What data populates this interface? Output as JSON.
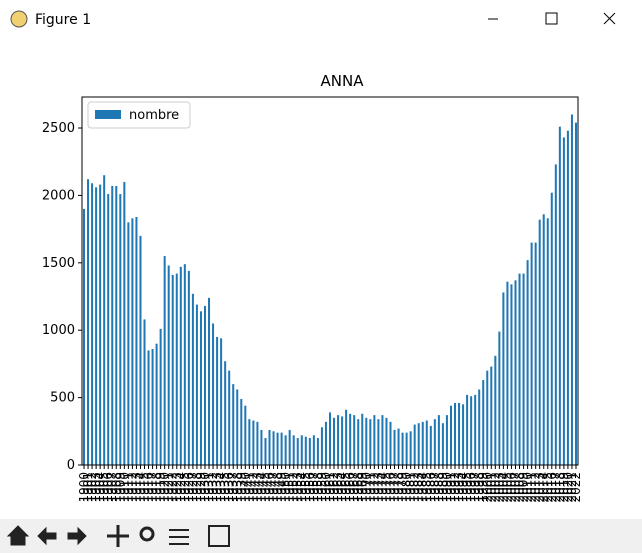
{
  "window": {
    "title": "Figure 1"
  },
  "chart_data": {
    "type": "bar",
    "title": "ANNA",
    "categories": [
      "1900",
      "1901",
      "1902",
      "1903",
      "1904",
      "1905",
      "1906",
      "1907",
      "1908",
      "1909",
      "1910",
      "1911",
      "1912",
      "1913",
      "1914",
      "1915",
      "1916",
      "1917",
      "1918",
      "1919",
      "1920",
      "1921",
      "1922",
      "1923",
      "1924",
      "1925",
      "1926",
      "1927",
      "1928",
      "1929",
      "1930",
      "1931",
      "1932",
      "1933",
      "1934",
      "1935",
      "1936",
      "1937",
      "1938",
      "1939",
      "1940",
      "1941",
      "1942",
      "1943",
      "1944",
      "1945",
      "1946",
      "1947",
      "1948",
      "1949",
      "1950",
      "1951",
      "1952",
      "1953",
      "1954",
      "1955",
      "1956",
      "1957",
      "1958",
      "1959",
      "1960",
      "1961",
      "1962",
      "1963",
      "1964",
      "1965",
      "1966",
      "1967",
      "1968",
      "1969",
      "1970",
      "1971",
      "1972",
      "1973",
      "1974",
      "1975",
      "1976",
      "1977",
      "1978",
      "1979",
      "1980",
      "1981",
      "1982",
      "1983",
      "1984",
      "1985",
      "1986",
      "1987",
      "1988",
      "1989",
      "1990",
      "1991",
      "1992",
      "1993",
      "1994",
      "1995",
      "1996",
      "1997",
      "1998",
      "1999",
      "2000",
      "2001",
      "2002",
      "2003",
      "2004",
      "2005",
      "2006",
      "2007",
      "2008",
      "2009",
      "2010",
      "2011",
      "2012",
      "2013",
      "2014",
      "2015",
      "2016",
      "2017",
      "2018",
      "2019",
      "2020",
      "2021",
      "2022"
    ],
    "series": [
      {
        "name": "nombre",
        "color": "#1f77b4",
        "values": [
          1900,
          2120,
          2090,
          2060,
          2080,
          2150,
          2010,
          2070,
          2070,
          2010,
          2100,
          1800,
          1830,
          1840,
          1700,
          1080,
          850,
          860,
          900,
          1010,
          1550,
          1480,
          1410,
          1420,
          1470,
          1490,
          1440,
          1270,
          1190,
          1140,
          1180,
          1240,
          1050,
          950,
          940,
          770,
          700,
          600,
          560,
          490,
          440,
          340,
          330,
          320,
          260,
          200,
          260,
          250,
          240,
          240,
          220,
          260,
          220,
          200,
          220,
          210,
          200,
          220,
          200,
          280,
          320,
          390,
          350,
          370,
          360,
          410,
          380,
          370,
          340,
          380,
          350,
          340,
          370,
          340,
          370,
          350,
          320,
          260,
          270,
          240,
          240,
          250,
          300,
          310,
          320,
          330,
          290,
          340,
          370,
          310,
          370,
          440,
          460,
          460,
          450,
          520,
          510,
          520,
          560,
          630,
          700,
          730,
          810,
          990,
          1280,
          1360,
          1340,
          1370,
          1420,
          1420,
          1520,
          1650,
          1650,
          1820,
          1860,
          1830,
          2020,
          2230,
          2510,
          2430,
          2480,
          2600,
          2540
        ]
      }
    ],
    "ylim": [
      0,
      2730
    ],
    "yticks": [
      0,
      500,
      1000,
      1500,
      2000,
      2500
    ],
    "legend": "upper left"
  }
}
